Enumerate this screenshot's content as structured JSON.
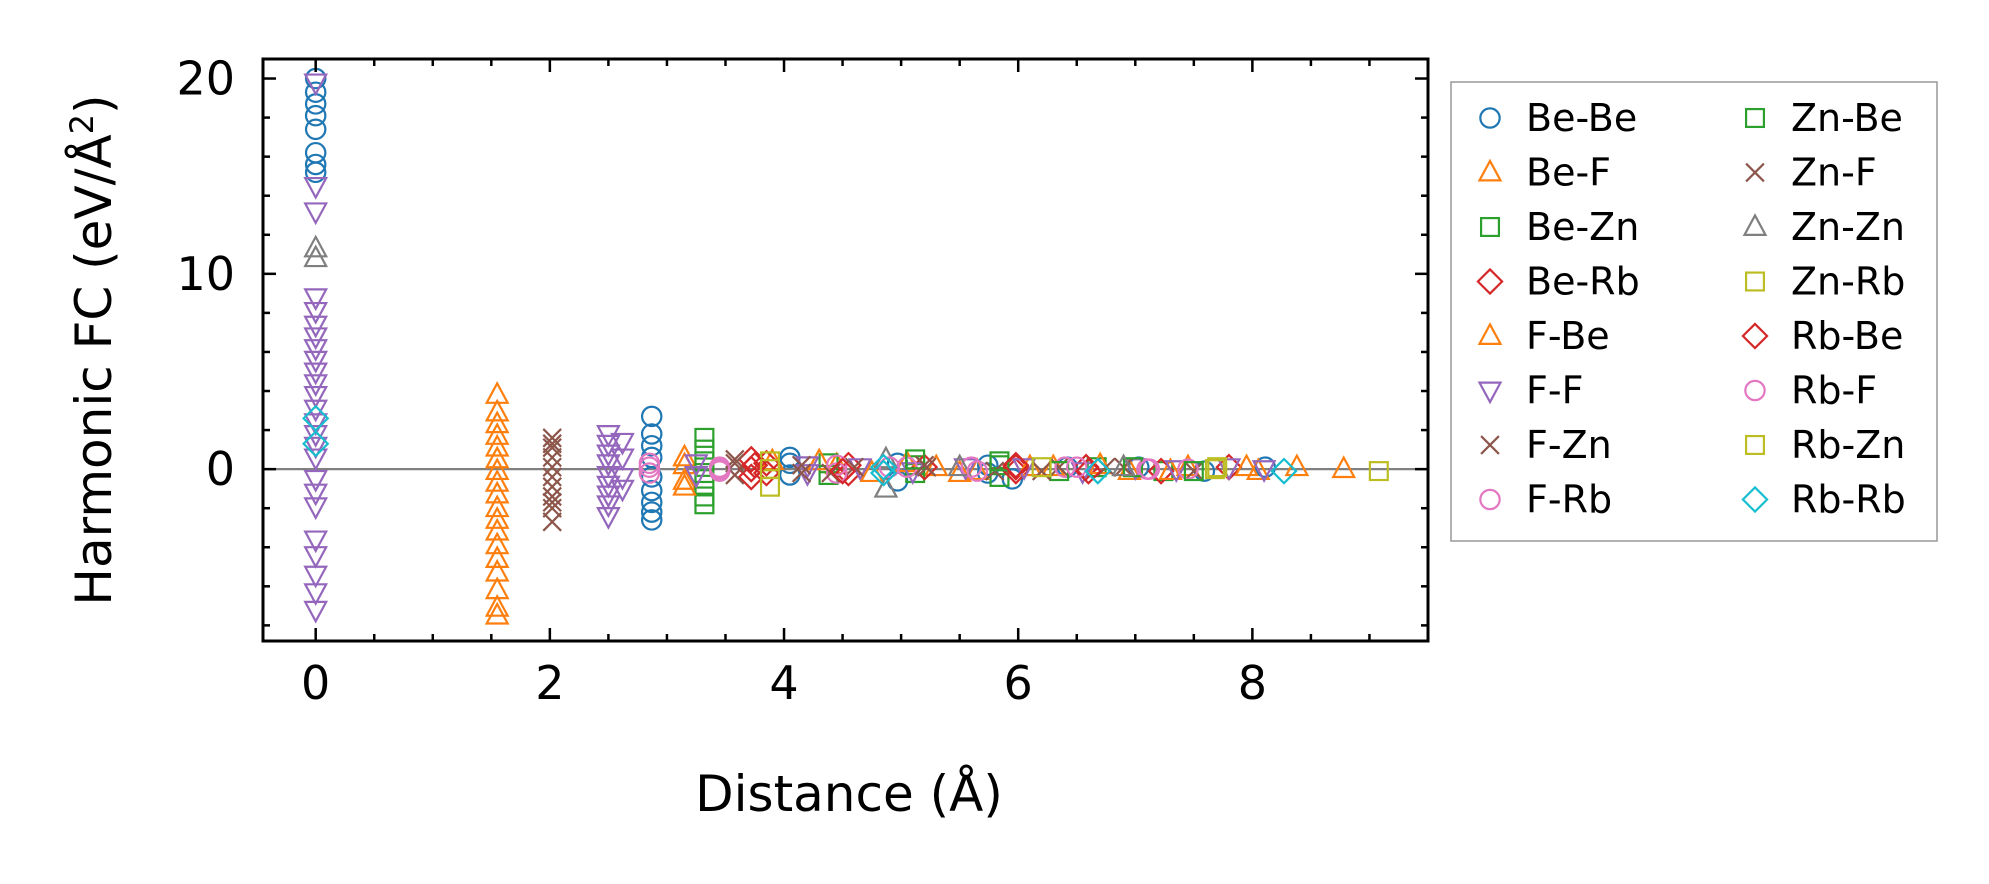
{
  "chart_data": {
    "type": "scatter",
    "title": "",
    "xlabel": "Distance (Å)",
    "ylabel_main": "Harmonic FC (eV/Å",
    "ylabel_sup": "2",
    "ylabel_close": ")",
    "xlim": [
      -0.45,
      9.5
    ],
    "ylim": [
      -8.8,
      21.0
    ],
    "xticks": [
      0,
      2,
      4,
      6,
      8
    ],
    "yticks": [
      0,
      10,
      20
    ],
    "xtick_labels": [
      "0",
      "2",
      "4",
      "6",
      "8"
    ],
    "ytick_labels": [
      "0",
      "10",
      "20"
    ],
    "hline_y": 0,
    "legend_position": "outside-right",
    "series": [
      {
        "name": "Be-Be",
        "marker": "circle",
        "color": "#1f77b4",
        "points": [
          [
            0,
            20.0
          ],
          [
            0,
            19.3
          ],
          [
            0,
            18.7
          ],
          [
            0,
            18.1
          ],
          [
            0,
            17.4
          ],
          [
            0,
            16.2
          ],
          [
            0,
            15.6
          ],
          [
            0,
            15.2
          ],
          [
            2.87,
            2.7
          ],
          [
            2.87,
            1.8
          ],
          [
            2.87,
            1.2
          ],
          [
            2.87,
            0.6
          ],
          [
            2.87,
            -0.4
          ],
          [
            2.87,
            -1.1
          ],
          [
            2.87,
            -1.7
          ],
          [
            2.87,
            -2.2
          ],
          [
            2.87,
            -2.6
          ],
          [
            4.05,
            0.6
          ],
          [
            4.05,
            0.3
          ],
          [
            4.05,
            -0.3
          ],
          [
            4.97,
            -0.6
          ],
          [
            4.97,
            0.3
          ],
          [
            5.74,
            0.2
          ],
          [
            5.74,
            -0.2
          ],
          [
            5.95,
            -0.5
          ],
          [
            6.42,
            0.1
          ],
          [
            7.03,
            0.1
          ],
          [
            7.59,
            -0.1
          ],
          [
            8.11,
            0.1
          ]
        ]
      },
      {
        "name": "Be-F",
        "marker": "triangle-up",
        "color": "#ff7f0e",
        "points": [
          [
            1.55,
            3.8
          ],
          [
            1.55,
            2.9
          ],
          [
            1.55,
            2.3
          ],
          [
            1.55,
            1.7
          ],
          [
            1.55,
            1.1
          ],
          [
            1.55,
            0.5
          ],
          [
            1.55,
            -0.1
          ],
          [
            1.55,
            -0.7
          ],
          [
            1.55,
            -1.3
          ],
          [
            1.55,
            -2.0
          ],
          [
            1.55,
            -2.6
          ],
          [
            1.55,
            -3.2
          ],
          [
            1.55,
            -3.9
          ],
          [
            3.15,
            0.6
          ],
          [
            3.15,
            -0.6
          ],
          [
            3.9,
            0.4
          ],
          [
            4.45,
            0.2
          ],
          [
            4.75,
            -0.2
          ],
          [
            5.3,
            0.1
          ],
          [
            5.65,
            -0.1
          ],
          [
            6.3,
            0.1
          ],
          [
            6.95,
            -0.1
          ],
          [
            7.45,
            0.1
          ],
          [
            8.05,
            -0.1
          ],
          [
            8.38,
            0.1
          ],
          [
            8.78,
            0.0
          ]
        ]
      },
      {
        "name": "Be-Zn",
        "marker": "square",
        "color": "#2ca02c",
        "points": [
          [
            3.32,
            1.6
          ],
          [
            3.32,
            1.0
          ],
          [
            3.32,
            0.4
          ],
          [
            3.32,
            -0.2
          ],
          [
            3.32,
            -0.8
          ],
          [
            3.32,
            -1.4
          ],
          [
            3.32,
            -1.8
          ],
          [
            4.38,
            0.3
          ],
          [
            4.38,
            -0.3
          ],
          [
            5.12,
            0.2
          ],
          [
            5.12,
            -0.2
          ],
          [
            5.84,
            0.2
          ],
          [
            5.84,
            -0.4
          ],
          [
            6.67,
            0.1
          ],
          [
            7.24,
            -0.1
          ]
        ]
      },
      {
        "name": "Be-Rb",
        "marker": "diamond",
        "color": "#d62728",
        "points": [
          [
            3.72,
            0.5
          ],
          [
            3.72,
            0.0
          ],
          [
            3.72,
            -0.4
          ],
          [
            3.85,
            0.3
          ],
          [
            3.85,
            -0.2
          ],
          [
            4.55,
            0.2
          ],
          [
            4.55,
            -0.2
          ],
          [
            5.2,
            0.1
          ],
          [
            5.98,
            0.1
          ],
          [
            5.98,
            -0.1
          ],
          [
            6.58,
            0.1
          ],
          [
            7.22,
            -0.1
          ],
          [
            7.8,
            0.1
          ]
        ]
      },
      {
        "name": "F-Be",
        "marker": "triangle-up",
        "color": "#ff7f0e",
        "points": [
          [
            1.55,
            -4.6
          ],
          [
            1.55,
            -5.3
          ],
          [
            1.55,
            -6.2
          ],
          [
            1.55,
            -7.1
          ],
          [
            1.55,
            -7.5
          ],
          [
            3.15,
            0.2
          ],
          [
            3.15,
            -0.9
          ],
          [
            4.3,
            0.4
          ],
          [
            5.05,
            0.3
          ],
          [
            5.5,
            -0.2
          ],
          [
            6.1,
            0.1
          ],
          [
            6.7,
            0.2
          ],
          [
            7.3,
            -0.1
          ],
          [
            7.95,
            0.1
          ]
        ]
      },
      {
        "name": "F-F",
        "marker": "triangle-down",
        "color": "#9467bd",
        "points": [
          [
            0,
            19.8
          ],
          [
            0,
            14.5
          ],
          [
            0,
            13.2
          ],
          [
            0,
            8.8
          ],
          [
            0,
            8.1
          ],
          [
            0,
            7.4
          ],
          [
            0,
            6.8
          ],
          [
            0,
            6.2
          ],
          [
            0,
            5.6
          ],
          [
            0,
            5.0
          ],
          [
            0,
            4.4
          ],
          [
            0,
            3.8
          ],
          [
            0,
            3.1
          ],
          [
            0,
            2.4
          ],
          [
            0,
            1.8
          ],
          [
            0,
            1.2
          ],
          [
            0,
            0.6
          ],
          [
            0,
            -0.5
          ],
          [
            0,
            -1.2
          ],
          [
            0,
            -1.9
          ],
          [
            0,
            -3.6
          ],
          [
            0,
            -4.4
          ],
          [
            0,
            -5.4
          ],
          [
            0,
            -6.3
          ],
          [
            0,
            -7.2
          ],
          [
            2.5,
            1.8
          ],
          [
            2.5,
            1.3
          ],
          [
            2.5,
            0.8
          ],
          [
            2.5,
            0.3
          ],
          [
            2.5,
            -0.3
          ],
          [
            2.5,
            -0.8
          ],
          [
            2.5,
            -1.3
          ],
          [
            2.5,
            -1.8
          ],
          [
            2.5,
            -2.4
          ],
          [
            2.62,
            1.4
          ],
          [
            2.62,
            0.6
          ],
          [
            2.62,
            -0.4
          ],
          [
            2.62,
            -1.0
          ],
          [
            3.25,
            0.3
          ],
          [
            3.25,
            -0.3
          ],
          [
            4.2,
            0.2
          ],
          [
            4.2,
            -0.2
          ],
          [
            4.65,
            0.1
          ],
          [
            5.1,
            -0.1
          ],
          [
            5.55,
            0.1
          ],
          [
            6.05,
            0.1
          ],
          [
            6.55,
            -0.1
          ],
          [
            7.0,
            0.1
          ],
          [
            7.35,
            0.0
          ],
          [
            7.8,
            0.1
          ],
          [
            8.1,
            0.0
          ]
        ]
      },
      {
        "name": "F-Zn",
        "marker": "x",
        "color": "#8c564b",
        "points": [
          [
            2.02,
            1.6
          ],
          [
            2.02,
            1.1
          ],
          [
            2.02,
            0.6
          ],
          [
            2.02,
            0.1
          ],
          [
            2.02,
            -0.4
          ],
          [
            2.02,
            -0.9
          ],
          [
            2.02,
            -1.4
          ],
          [
            2.02,
            -2.0
          ],
          [
            2.02,
            -2.7
          ],
          [
            3.58,
            0.3
          ],
          [
            3.58,
            -0.3
          ],
          [
            4.15,
            0.2
          ],
          [
            4.15,
            -0.2
          ],
          [
            4.6,
            0.1
          ],
          [
            5.22,
            0.1
          ],
          [
            5.8,
            -0.1
          ],
          [
            6.35,
            0.1
          ],
          [
            6.9,
            0.1
          ],
          [
            7.5,
            -0.1
          ]
        ]
      },
      {
        "name": "F-Rb",
        "marker": "circle",
        "color": "#e377c2",
        "points": [
          [
            2.85,
            0.3
          ],
          [
            2.85,
            -0.2
          ],
          [
            3.45,
            0.1
          ],
          [
            3.45,
            -0.1
          ],
          [
            4.45,
            0.2
          ],
          [
            4.45,
            -0.2
          ],
          [
            5.05,
            0.1
          ],
          [
            5.6,
            0.1
          ],
          [
            6.4,
            0.1
          ],
          [
            7.1,
            0.0
          ],
          [
            7.45,
            0.0
          ]
        ]
      },
      {
        "name": "Zn-Be",
        "marker": "square",
        "color": "#2ca02c",
        "points": [
          [
            5.12,
            0.5
          ],
          [
            5.84,
            0.4
          ],
          [
            6.35,
            -0.1
          ],
          [
            6.98,
            0.1
          ],
          [
            7.5,
            -0.1
          ]
        ]
      },
      {
        "name": "Zn-F",
        "marker": "x",
        "color": "#8c564b",
        "points": [
          [
            2.02,
            1.3
          ],
          [
            2.02,
            -1.7
          ],
          [
            3.58,
            0.5
          ],
          [
            4.4,
            -0.2
          ],
          [
            5.2,
            0.2
          ],
          [
            6.2,
            -0.1
          ],
          [
            6.75,
            0.1
          ]
        ]
      },
      {
        "name": "Zn-Zn",
        "marker": "triangle-up",
        "color": "#7f7f7f",
        "points": [
          [
            0,
            11.3
          ],
          [
            0,
            10.8
          ],
          [
            4.87,
            0.5
          ],
          [
            4.87,
            -1.0
          ],
          [
            5.5,
            0.1
          ],
          [
            6.9,
            0.1
          ]
        ]
      },
      {
        "name": "Zn-Rb",
        "marker": "square",
        "color": "#bcbd22",
        "points": [
          [
            3.88,
            0.4
          ],
          [
            3.88,
            -0.9
          ],
          [
            6.2,
            0.1
          ],
          [
            7.68,
            0.0
          ],
          [
            9.08,
            -0.1
          ]
        ]
      },
      {
        "name": "Rb-Be",
        "marker": "diamond",
        "color": "#d62728",
        "points": [
          [
            3.75,
            0.2
          ],
          [
            4.5,
            -0.1
          ],
          [
            5.98,
            0.2
          ],
          [
            6.6,
            -0.1
          ]
        ]
      },
      {
        "name": "Rb-F",
        "marker": "circle",
        "color": "#e377c2",
        "points": [
          [
            2.85,
            0.1
          ],
          [
            3.45,
            0.0
          ],
          [
            4.9,
            0.1
          ],
          [
            5.65,
            -0.1
          ],
          [
            6.5,
            0.1
          ],
          [
            7.12,
            0.0
          ]
        ]
      },
      {
        "name": "Rb-Zn",
        "marker": "square",
        "color": "#bcbd22",
        "points": [
          [
            3.88,
            0.0
          ],
          [
            7.7,
            0.1
          ]
        ]
      },
      {
        "name": "Rb-Rb",
        "marker": "diamond",
        "color": "#17becf",
        "points": [
          [
            0,
            2.6
          ],
          [
            0,
            1.3
          ],
          [
            4.85,
            0.1
          ],
          [
            4.85,
            -0.2
          ],
          [
            6.68,
            -0.1
          ],
          [
            8.27,
            -0.1
          ]
        ]
      }
    ]
  }
}
